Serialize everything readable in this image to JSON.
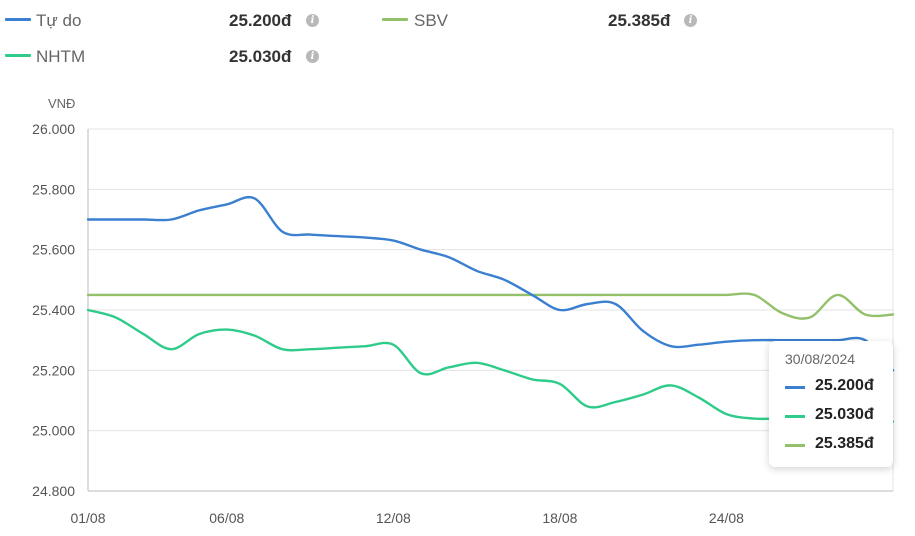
{
  "legend": [
    {
      "name": "Tự do",
      "value": "25.200đ",
      "color": "#3a7fd0",
      "icon": "info-icon"
    },
    {
      "name": "SBV",
      "value": "25.385đ",
      "color": "#93c06a",
      "icon": "info-icon"
    },
    {
      "name": "NHTM",
      "value": "25.030đ",
      "color": "#2ecb8a",
      "icon": "info-icon"
    }
  ],
  "tooltip": {
    "date": "30/08/2024",
    "rows": [
      {
        "value": "25.200đ",
        "color": "#3a7fd0"
      },
      {
        "value": "25.030đ",
        "color": "#2ecb8a"
      },
      {
        "value": "25.385đ",
        "color": "#93c06a"
      }
    ]
  },
  "chart_data": {
    "type": "line",
    "ylabel": "VNĐ",
    "ylim": [
      24800,
      26000
    ],
    "yticks": [
      24800,
      25000,
      25200,
      25400,
      25600,
      25800,
      26000
    ],
    "ytick_labels": [
      "24.800",
      "25.000",
      "25.200",
      "25.400",
      "25.600",
      "25.800",
      "26.000"
    ],
    "xlim": [
      1,
      30
    ],
    "xticks": [
      1,
      6,
      12,
      18,
      24
    ],
    "xtick_labels": [
      "01/08",
      "06/08",
      "12/08",
      "18/08",
      "24/08"
    ],
    "grid": true,
    "series": [
      {
        "name": "Tự do",
        "color": "#3a7fd0",
        "x": [
          1,
          2,
          3,
          4,
          5,
          6,
          7,
          8,
          9,
          10,
          11,
          12,
          13,
          14,
          15,
          16,
          17,
          18,
          19,
          20,
          21,
          22,
          23,
          24,
          25,
          26,
          27,
          28,
          29,
          30
        ],
        "y": [
          25700,
          25700,
          25700,
          25700,
          25730,
          25750,
          25770,
          25660,
          25650,
          25645,
          25640,
          25630,
          25600,
          25575,
          25530,
          25500,
          25450,
          25400,
          25420,
          25420,
          25330,
          25280,
          25285,
          25295,
          25300,
          25300,
          25300,
          25300,
          25300,
          25200
        ]
      },
      {
        "name": "NHTM",
        "color": "#2ecb8a",
        "x": [
          1,
          2,
          3,
          4,
          5,
          6,
          7,
          8,
          9,
          10,
          11,
          12,
          13,
          14,
          15,
          16,
          17,
          18,
          19,
          20,
          21,
          22,
          23,
          24,
          25,
          26,
          27,
          28,
          29,
          30
        ],
        "y": [
          25400,
          25375,
          25320,
          25270,
          25320,
          25335,
          25315,
          25270,
          25270,
          25275,
          25280,
          25285,
          25190,
          25210,
          25225,
          25200,
          25170,
          25155,
          25080,
          25095,
          25120,
          25150,
          25110,
          25055,
          25040,
          25040,
          25035,
          25030,
          25030,
          25030
        ]
      },
      {
        "name": "SBV",
        "color": "#93c06a",
        "x": [
          1,
          2,
          3,
          4,
          5,
          6,
          7,
          8,
          9,
          10,
          11,
          12,
          13,
          14,
          15,
          16,
          17,
          18,
          19,
          20,
          21,
          22,
          23,
          24,
          25,
          26,
          27,
          28,
          29,
          30
        ],
        "y": [
          25450,
          25450,
          25450,
          25450,
          25450,
          25450,
          25450,
          25450,
          25450,
          25450,
          25450,
          25450,
          25450,
          25450,
          25450,
          25450,
          25450,
          25450,
          25450,
          25450,
          25450,
          25450,
          25450,
          25450,
          25450,
          25390,
          25375,
          25450,
          25385,
          25385
        ]
      }
    ]
  }
}
